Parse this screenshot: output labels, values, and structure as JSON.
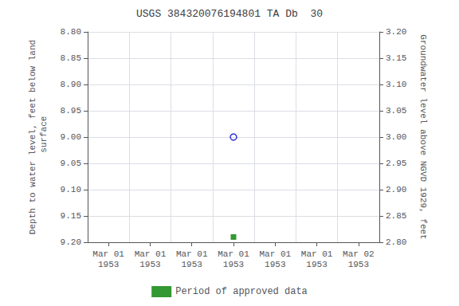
{
  "chart_data": {
    "type": "scatter",
    "title": "USGS 384320076194801 TA Db  30",
    "ylabel": "Depth to water level, feet below land\n surface",
    "y2label": "Groundwater level above NGVD 1929, feet",
    "categories": [
      "Mar 01\n1953",
      "Mar 01\n1953",
      "Mar 01\n1953",
      "Mar 01\n1953",
      "Mar 01\n1953",
      "Mar 01\n1953",
      "Mar 02\n1953"
    ],
    "series": [
      {
        "color": "#0000cc",
        "marker": "open circle",
        "values": [
          null,
          null,
          null,
          9.0,
          null,
          null,
          null
        ]
      },
      {
        "name": "Period of approved data",
        "color": "#008000",
        "marker": "square",
        "values": [
          null,
          null,
          null,
          9.19,
          null,
          null,
          null
        ]
      }
    ],
    "ylim": [
      9.2,
      8.8
    ],
    "yticks": [
      {
        "value": 8.8,
        "label": "8.80"
      },
      {
        "value": 8.85,
        "label": "8.85"
      },
      {
        "value": 8.9,
        "label": "8.90"
      },
      {
        "value": 8.95,
        "label": "8.95"
      },
      {
        "value": 9.0,
        "label": "9.00"
      },
      {
        "value": 9.05,
        "label": "9.05"
      },
      {
        "value": 9.1,
        "label": "9.10"
      },
      {
        "value": 9.15,
        "label": "9.15"
      },
      {
        "value": 9.2,
        "label": "9.20"
      }
    ],
    "y2lim": [
      2.8,
      3.2
    ],
    "y2ticks": [
      {
        "value": 3.2,
        "label": "3.20"
      },
      {
        "value": 3.15,
        "label": "3.15"
      },
      {
        "value": 3.1,
        "label": "3.10"
      },
      {
        "value": 3.05,
        "label": "3.05"
      },
      {
        "value": 3.0,
        "label": "3.00"
      },
      {
        "value": 2.95,
        "label": "2.95"
      },
      {
        "value": 2.9,
        "label": "2.90"
      },
      {
        "value": 2.85,
        "label": "2.85"
      },
      {
        "value": 2.8,
        "label": "2.80"
      }
    ],
    "grid": true,
    "legend": "bottom"
  }
}
